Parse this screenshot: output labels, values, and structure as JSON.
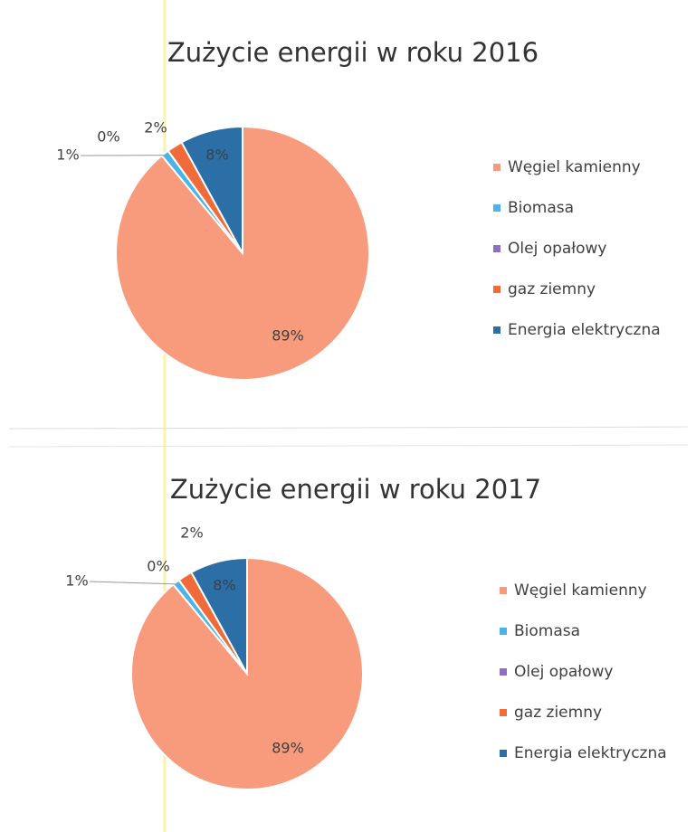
{
  "chart_data": [
    {
      "type": "pie",
      "title": "Zużycie energii w roku 2016",
      "categories": [
        "Węgiel kamienny",
        "Biomasa",
        "Olej opałowy",
        "gaz ziemny",
        "Energia elektryczna"
      ],
      "values": [
        89,
        1,
        0,
        2,
        8
      ],
      "value_labels": [
        "89%",
        "1%",
        "0%",
        "2%",
        "8%"
      ],
      "colors": [
        "#f89a7c",
        "#4db3e6",
        "#8e6fc1",
        "#f06a3a",
        "#2c6ea6"
      ],
      "legend": "right"
    },
    {
      "type": "pie",
      "title": "Zużycie energii w roku 2017",
      "categories": [
        "Węgiel kamienny",
        "Biomasa",
        "Olej opałowy",
        "gaz ziemny",
        "Energia elektryczna"
      ],
      "values": [
        89,
        1,
        0,
        2,
        8
      ],
      "value_labels": [
        "89%",
        "1%",
        "0%",
        "2%",
        "8%"
      ],
      "colors": [
        "#f89a7c",
        "#4db3e6",
        "#8e6fc1",
        "#f06a3a",
        "#2c6ea6"
      ],
      "legend": "right"
    }
  ]
}
